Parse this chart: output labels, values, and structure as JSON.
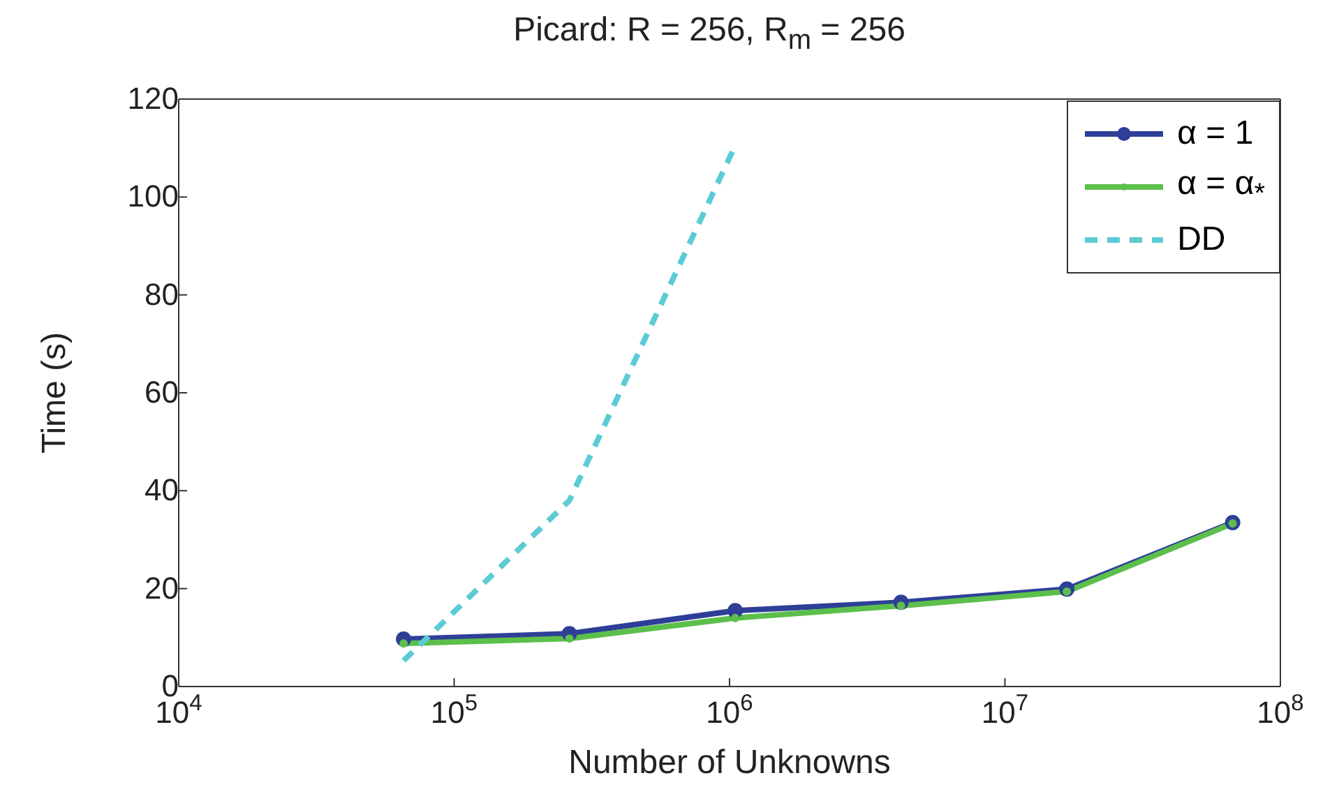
{
  "chart_data": {
    "type": "line",
    "title": "Picard: R = 256, R$_{m}$ = 256",
    "xlabel": "Number of Unknowns",
    "ylabel": "Time (s)",
    "log": "x",
    "xlim": [
      10000,
      100000000
    ],
    "xticks": [
      {
        "value": 10000,
        "label": "10$^{4}$"
      },
      {
        "value": 100000,
        "label": "10$^{5}$"
      },
      {
        "value": 1000000,
        "label": "10$^{6}$"
      },
      {
        "value": 10000000,
        "label": "10$^{7}$"
      },
      {
        "value": 100000000,
        "label": "10$^{8}$"
      }
    ],
    "ylim": [
      0,
      120
    ],
    "yticks": [
      0,
      20,
      40,
      60,
      80,
      100,
      120
    ],
    "legend": "top right",
    "series": [
      {
        "name": "α = 1",
        "color": "#2e3f98",
        "marker": "circle",
        "line_style": "solid",
        "x": [
          65536,
          262144,
          1048576,
          4194304,
          16777216,
          67108864
        ],
        "values": [
          9.7,
          10.8,
          15.5,
          17.2,
          19.9,
          33.5
        ]
      },
      {
        "name": "α = α$_{*}$",
        "color": "#5cbf4c",
        "marker": "circle",
        "line_style": "solid",
        "x": [
          65536,
          262144,
          1048576,
          4194304,
          16777216,
          67108864
        ],
        "values": [
          8.8,
          9.8,
          14,
          16.5,
          19.4,
          33.3
        ]
      },
      {
        "name": "DD",
        "color": "#5ccbd6",
        "marker": "none",
        "line_style": "dashed",
        "x": [
          65536,
          262144,
          1048576
        ],
        "values": [
          5.3,
          38,
          110.5
        ]
      }
    ]
  }
}
